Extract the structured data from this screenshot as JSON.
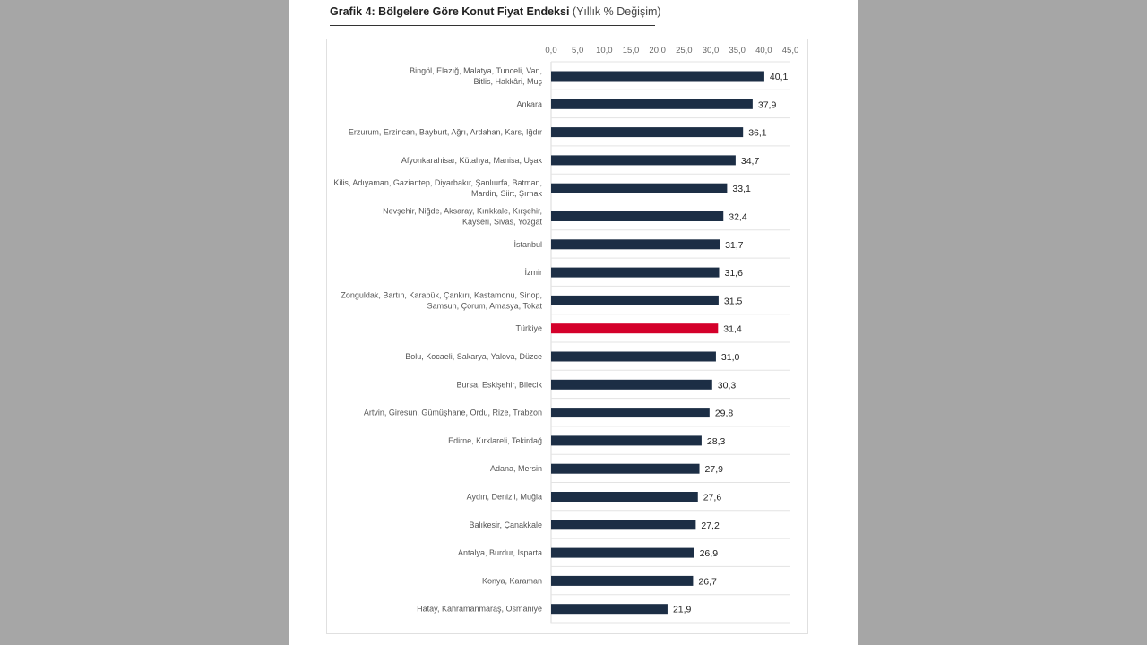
{
  "chart_data": {
    "type": "bar",
    "orientation": "horizontal",
    "title": "Grafik 4: Bölgelere Göre Konut Fiyat Endeksi",
    "subtitle": "(Yıllık % Değişim)",
    "xlabel": "",
    "ylabel": "",
    "xlim": [
      0,
      45
    ],
    "x_ticks": [
      "0,0",
      "5,0",
      "10,0",
      "15,0",
      "20,0",
      "25,0",
      "30,0",
      "35,0",
      "40,0",
      "45,0"
    ],
    "x_tick_values": [
      0,
      5,
      10,
      15,
      20,
      25,
      30,
      35,
      40,
      45
    ],
    "axis_position": "top",
    "grid": true,
    "legend": "none",
    "colors": {
      "default": "#1c2e45",
      "highlight": "#d4002a"
    },
    "highlight_category": "Türkiye",
    "categories": [
      [
        "Bingöl, Elazığ, Malatya, Tunceli, Van,",
        "Bitlis, Hakkâri, Muş"
      ],
      [
        "Ankara"
      ],
      [
        "Erzurum, Erzincan, Bayburt, Ağrı, Ardahan, Kars, Iğdır"
      ],
      [
        "Afyonkarahisar, Kütahya, Manisa, Uşak"
      ],
      [
        "Kilis, Adıyaman, Gaziantep, Diyarbakır, Şanlıurfa, Batman,",
        "Mardin, Siirt, Şırnak"
      ],
      [
        "Nevşehir, Niğde, Aksaray, Kırıkkale, Kırşehir,",
        "Kayseri, Sivas, Yozgat"
      ],
      [
        "İstanbul"
      ],
      [
        "İzmir"
      ],
      [
        "Zonguldak, Bartın, Karabük, Çankırı, Kastamonu, Sinop,",
        "Samsun, Çorum, Amasya, Tokat"
      ],
      [
        "Türkiye"
      ],
      [
        "Bolu, Kocaeli, Sakarya, Yalova, Düzce"
      ],
      [
        "Bursa, Eskişehir, Bilecik"
      ],
      [
        "Artvin, Giresun, Gümüşhane, Ordu, Rize, Trabzon"
      ],
      [
        "Edirne, Kırklareli, Tekirdağ"
      ],
      [
        "Adana, Mersin"
      ],
      [
        "Aydın, Denizli, Muğla"
      ],
      [
        "Balıkesir, Çanakkale"
      ],
      [
        "Antalya, Burdur, Isparta"
      ],
      [
        "Konya, Karaman"
      ],
      [
        "Hatay, Kahramanmaraş, Osmaniye"
      ]
    ],
    "values": [
      40.1,
      37.9,
      36.1,
      34.7,
      33.1,
      32.4,
      31.7,
      31.6,
      31.5,
      31.4,
      31.0,
      30.3,
      29.8,
      28.3,
      27.9,
      27.6,
      27.2,
      26.9,
      26.7,
      21.9
    ],
    "value_labels": [
      "40,1",
      "37,9",
      "36,1",
      "34,7",
      "33,1",
      "32,4",
      "31,7",
      "31,6",
      "31,5",
      "31,4",
      "31,0",
      "30,3",
      "29,8",
      "28,3",
      "27,9",
      "27,6",
      "27,2",
      "26,9",
      "26,7",
      "21,9"
    ]
  }
}
